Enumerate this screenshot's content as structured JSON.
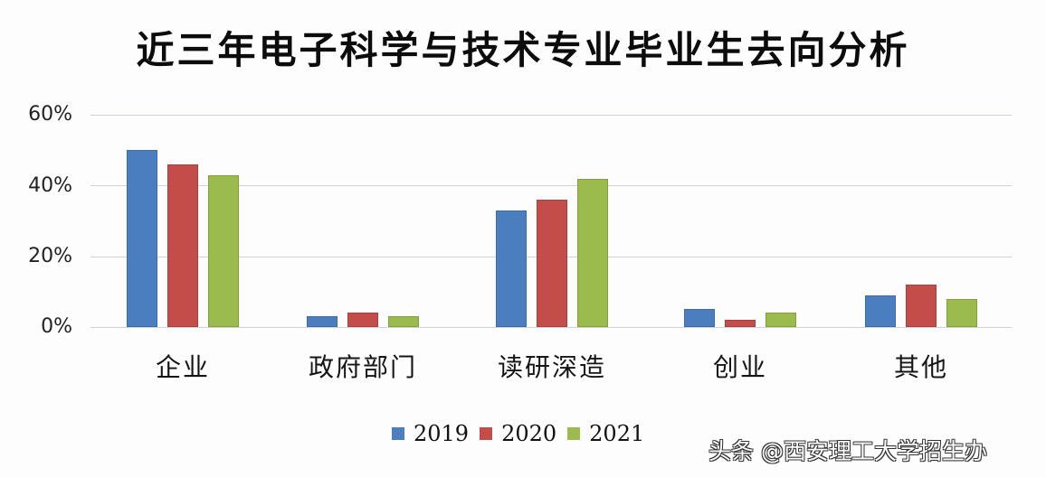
{
  "title": "近三年电子科学与技术专业毕业生去向分析",
  "y_ticks": [
    "60%",
    "40%",
    "20%",
    "0%"
  ],
  "legend": [
    {
      "label": "2019",
      "color": "#4a7ebf"
    },
    {
      "label": "2020",
      "color": "#c44d4a"
    },
    {
      "label": "2021",
      "color": "#9bbb4c"
    }
  ],
  "watermark": "头条 @西安理工大学招生办",
  "chart_data": {
    "type": "bar",
    "title": "近三年电子科学与技术专业毕业生去向分析",
    "xlabel": "",
    "ylabel": "",
    "ylim": [
      0,
      60
    ],
    "y_ticks": [
      0,
      20,
      40,
      60
    ],
    "y_format": "percent",
    "grid": true,
    "legend_position": "bottom",
    "categories": [
      "企业",
      "政府部门",
      "读研深造",
      "创业",
      "其他"
    ],
    "series": [
      {
        "name": "2019",
        "color": "#4a7ebf",
        "values": [
          50,
          3,
          33,
          5,
          9
        ]
      },
      {
        "name": "2020",
        "color": "#c44d4a",
        "values": [
          46,
          4,
          36,
          2,
          12
        ]
      },
      {
        "name": "2021",
        "color": "#9bbb4c",
        "values": [
          43,
          3,
          42,
          4,
          8
        ]
      }
    ]
  }
}
